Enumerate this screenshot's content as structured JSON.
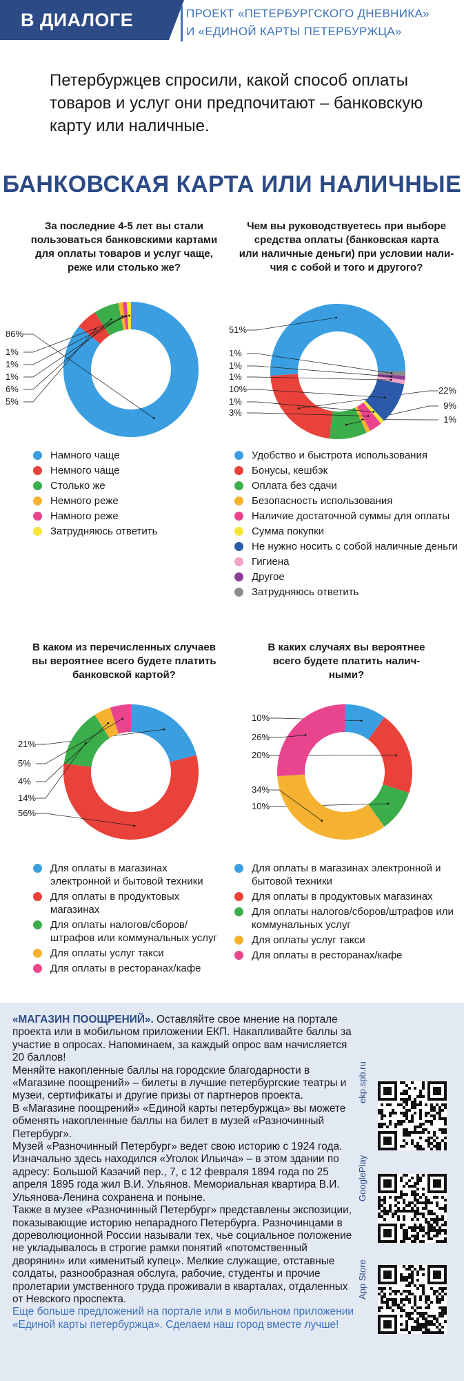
{
  "header": {
    "badge": "В ДИАЛОГЕ",
    "project_line1": "ПРОЕКТ «ПЕТЕРБУРГСКОГО ДНЕВНИКА»",
    "project_line2": "И «ЕДИНОЙ КАРТЫ ПЕТЕРБУРЖЦА»"
  },
  "intro": "Петербуржцев спросили, какой способ оплаты товаров и услуг они предпочитают – банковскую карту или наличные.",
  "main_title": "БАНКОВСКАЯ КАРТА ИЛИ НАЛИЧНЫЕ",
  "colors": {
    "brand": "#2b4a86",
    "accent": "#3d72b8",
    "promo_bg": "#e3e9f3"
  },
  "chart_data": [
    {
      "type": "pie",
      "title": "За последние 4-5 лет вы стали пользоваться банковскими картами для оплаты товаров и услуг чаще, реже или столько же?",
      "slices": [
        {
          "label": "Намного чаще",
          "value": 86,
          "pct": "86%",
          "color": "#3a9ee0"
        },
        {
          "label": "Немного чаще",
          "value": 5,
          "pct": "5%",
          "color": "#e8423a"
        },
        {
          "label": "Столько же",
          "value": 6,
          "pct": "6%",
          "color": "#3bad4a"
        },
        {
          "label": "Немного реже",
          "value": 1,
          "pct": "1%",
          "color": "#f5b230"
        },
        {
          "label": "Намного реже",
          "value": 1,
          "pct": "1%",
          "color": "#e9458f"
        },
        {
          "label": "Затрудняюсь ответить",
          "value": 1,
          "pct": "1%",
          "color": "#f7e63a"
        }
      ]
    },
    {
      "type": "pie",
      "title": "Чем вы руководствуетесь при выборе средства оплаты (банковская карта или наличные деньги) при условии наличия с собой и того и другого?",
      "slices": [
        {
          "label": "Удобство и быстрота использования",
          "value": 51,
          "pct": "51%",
          "color": "#3a9ee0"
        },
        {
          "label": "Бонусы, кешбэк",
          "value": 22,
          "pct": "22%",
          "color": "#e8423a"
        },
        {
          "label": "Оплата без сдачи",
          "value": 9,
          "pct": "9%",
          "color": "#3bad4a"
        },
        {
          "label": "Безопасность использования",
          "value": 1,
          "pct": "1%",
          "color": "#f5b230"
        },
        {
          "label": "Наличие достаточной суммы для оплаты",
          "value": 3,
          "pct": "3%",
          "color": "#e9458f"
        },
        {
          "label": "Сумма покупки",
          "value": 1,
          "pct": "1%",
          "color": "#f7e63a"
        },
        {
          "label": "Не нужно носить с собой наличные деньги",
          "value": 10,
          "pct": "10%",
          "color": "#2b5ba8"
        },
        {
          "label": "Гигиена",
          "value": 1,
          "pct": "1%",
          "color": "#f0a3c6"
        },
        {
          "label": "Другое",
          "value": 1,
          "pct": "1%",
          "color": "#8c3f98"
        },
        {
          "label": "Затрудняюсь ответить",
          "value": 1,
          "pct": "1%",
          "color": "#8c8c8c"
        }
      ]
    },
    {
      "type": "pie",
      "title": "В каком из перечисленных случаев вы вероятнее всего будете платить банковской картой?",
      "slices": [
        {
          "label": "Для оплаты в магазинах электронной и бытовой техники",
          "value": 21,
          "pct": "21%",
          "color": "#3a9ee0"
        },
        {
          "label": "Для оплаты в продуктовых магазинах",
          "value": 56,
          "pct": "56%",
          "color": "#e8423a"
        },
        {
          "label": "Для оплаты налогов/сборов/штрафов или коммунальных услуг",
          "value": 14,
          "pct": "14%",
          "color": "#3bad4a"
        },
        {
          "label": "Для оплаты услуг такси",
          "value": 4,
          "pct": "4%",
          "color": "#f5b230"
        },
        {
          "label": "Для оплаты в ресторанах/кафе",
          "value": 5,
          "pct": "5%",
          "color": "#e9458f"
        }
      ]
    },
    {
      "type": "pie",
      "title": "В каких случаях вы вероятнее всего будете платить наличными?",
      "slices": [
        {
          "label": "Для оплаты в магазинах электронной и бытовой техники",
          "value": 10,
          "pct": "10%",
          "color": "#3a9ee0"
        },
        {
          "label": "Для оплаты в продуктовых магазинах",
          "value": 20,
          "pct": "20%",
          "color": "#e8423a"
        },
        {
          "label": "Для оплаты налогов/сборов/штрафов или коммунальных услуг",
          "value": 10,
          "pct": "10%",
          "color": "#3bad4a"
        },
        {
          "label": "Для оплаты услуг такси",
          "value": 34,
          "pct": "34%",
          "color": "#f5b230"
        },
        {
          "label": "Для оплаты в ресторанах/кафе",
          "value": 26,
          "pct": "26%",
          "color": "#e9458f"
        }
      ]
    }
  ],
  "questions": {
    "q1": [
      "За последние 4-5 лет вы стали",
      "пользоваться банковскими картами",
      "для оплаты товаров и услуг чаще,",
      "реже или столько же?"
    ],
    "q2": [
      "Чем вы руководствуетесь при выборе",
      "средства оплаты (банковская карта",
      "или наличные деньги) при условии нали-",
      "чия с собой и того и другого?"
    ],
    "q3": [
      "В каком из перечисленных случаев",
      "вы вероятнее всего будете платить",
      "банковской картой?"
    ],
    "q4": [
      "В каких случаях вы вероятнее",
      "всего будете платить налич-",
      "ными?"
    ]
  },
  "legends": {
    "l1": [
      {
        "text": "Намного чаще",
        "color": "#3a9ee0"
      },
      {
        "text": "Немного чаще",
        "color": "#e8423a"
      },
      {
        "text": "Столько же",
        "color": "#3bad4a"
      },
      {
        "text": "Немного реже",
        "color": "#f5b230"
      },
      {
        "text": "Намного реже",
        "color": "#e9458f"
      },
      {
        "text": "Затрудняюсь ответить",
        "color": "#f7e63a"
      }
    ],
    "l2": [
      {
        "text": "Удобство и быстрота использования",
        "color": "#3a9ee0"
      },
      {
        "text": "Бонусы, кешбэк",
        "color": "#e8423a"
      },
      {
        "text": "Оплата без сдачи",
        "color": "#3bad4a"
      },
      {
        "text": "Безопасность использования",
        "color": "#f5b230"
      },
      {
        "text": "Наличие достаточной суммы для оплаты",
        "color": "#e9458f"
      },
      {
        "text": "Сумма покупки",
        "color": "#f7e63a"
      },
      {
        "text": "Не нужно носить с собой наличные деньги",
        "color": "#2b5ba8"
      },
      {
        "text": "Гигиена",
        "color": "#f0a3c6"
      },
      {
        "text": "Другое",
        "color": "#8c3f98"
      },
      {
        "text": "Затрудняюсь ответить",
        "color": "#8c8c8c"
      }
    ],
    "l3": [
      {
        "text": "Для оплаты в магазинах электронной и бытовой техники",
        "color": "#3a9ee0"
      },
      {
        "text": "Для оплаты в продуктовых магазинах",
        "color": "#e8423a"
      },
      {
        "text": "Для оплаты налогов/сборов/ штрафов или коммунальных услуг",
        "color": "#3bad4a"
      },
      {
        "text": "Для оплаты услуг такси",
        "color": "#f5b230"
      },
      {
        "text": "Для оплаты в ресторанах/кафе",
        "color": "#e9458f"
      }
    ],
    "l4": [
      {
        "text": "Для оплаты в магазинах электронной и бытовой техники",
        "color": "#3a9ee0"
      },
      {
        "text": "Для оплаты в продуктовых магазинах",
        "color": "#e8423a"
      },
      {
        "text": "Для оплаты налогов/сборов/штрафов или коммунальных услуг",
        "color": "#3bad4a"
      },
      {
        "text": "Для оплаты услуг такси",
        "color": "#f5b230"
      },
      {
        "text": "Для оплаты в ресторанах/кафе",
        "color": "#e9458f"
      }
    ]
  },
  "promo": {
    "lead": "«МАГАЗИН ПООЩРЕНИЙ».",
    "p1": "Оставляйте свое мнение на портале проекта или в мобильном приложении ЕКП. Накапливайте баллы за участие в опросах. Напоминаем, за каждый опрос вам начисляется 20 баллов!",
    "p2": "Меняйте накопленные баллы на городские благодарности в «Магазине поощрений» – билеты в лучшие петербургские театры и музеи, сертификаты и другие призы от партнеров проекта.",
    "p3": "В «Магазине поощрений» «Единой карты петербуржца» вы можете обменять накопленные баллы на билет в музей «Разночинный Петербург».",
    "p4": "Музей «Разночинный Петербург» ведет свою историю с 1924 года. Изначально здесь находился «Уголок Ильича» – в этом здании по адресу: Большой Казачий пер., 7, с 12 февраля 1894 года по 25 апреля 1895 года жил В.И. Ульянов. Мемориальная квартира В.И. Ульянова-Ленина сохранена и поныне.",
    "p5": "Также в музее «Разночинный Петербург» представлены экспозиции, показывающие историю непарадного Петербурга. Разночинцами в дореволюционной России называли тех, чье социальное положение не укладывалось в строгие рамки понятий «потомственный дворянин» или «именитый купец». Мелкие служащие, отставные солдаты, разнообразная обслуга, рабочие, студенты и прочие пролетарии умственного труда проживали в кварталах, отдаленных от Невского проспекта.",
    "p6": "Еще больше предложений на портале или в мобильном приложении «Единой карты петербуржца». Сделаем наш город вместе лучше!",
    "qr1_label": "ekp.spb.ru",
    "qr2_label": "GooglePlay",
    "qr3_label": "App Store"
  }
}
